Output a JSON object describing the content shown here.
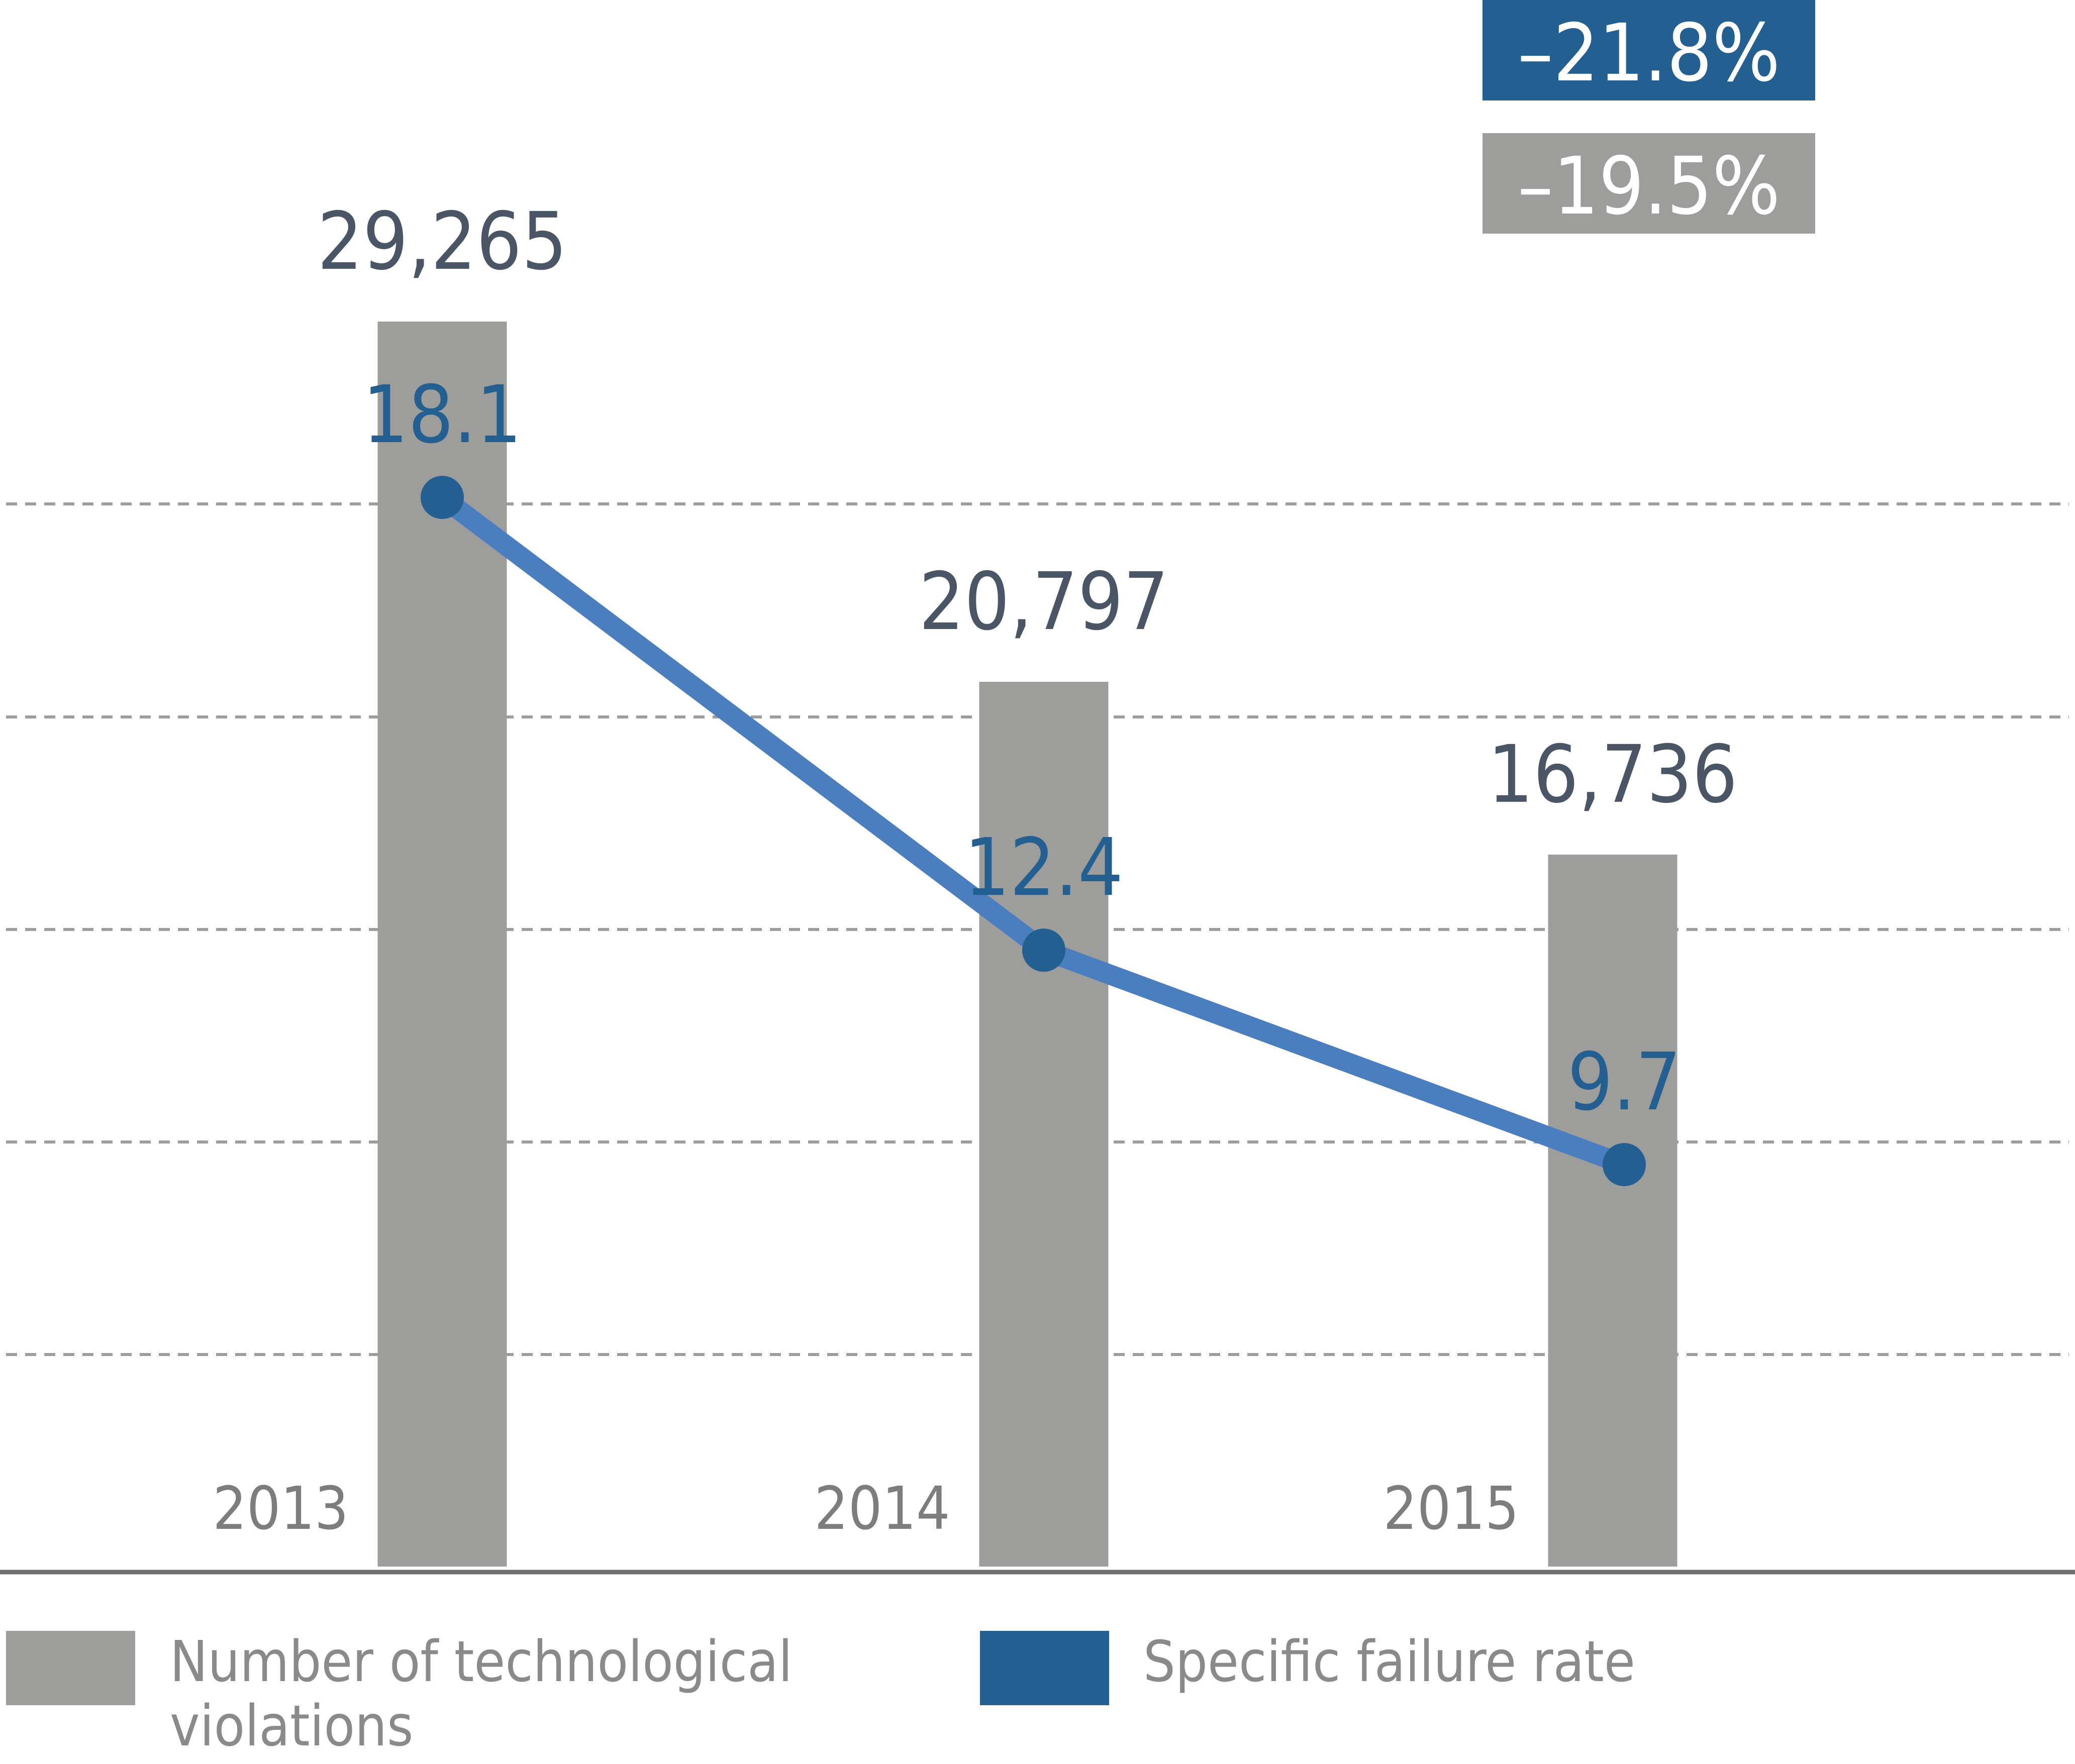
{
  "chart_data": {
    "type": "bar+line",
    "categories": [
      "2013",
      "2014",
      "2015"
    ],
    "series": [
      {
        "name": "Number of technological violations",
        "type": "bar",
        "values": [
          29265,
          20797,
          16736
        ],
        "labels": [
          "29,265",
          "20,797",
          "16,736"
        ],
        "color": "#9d9d9c"
      },
      {
        "name": "Specific failure rate",
        "type": "line",
        "values": [
          18.1,
          12.4,
          9.7
        ],
        "labels": [
          "18.1",
          "12.4",
          "9.7"
        ],
        "color": "#245f92",
        "line_color": "#4a7ebf"
      }
    ],
    "change_badges": [
      {
        "label": "–21.8%",
        "color": "#245f92"
      },
      {
        "label": "–19.5%",
        "color": "#9d9d9c"
      }
    ],
    "grid": true,
    "legend": "bottom",
    "colors": {
      "bar_value_label": "#4a5565",
      "line_value_label": "#245f92",
      "category_label": "#7d7d7d",
      "grid": "#9d9d9c",
      "axis": "#6f6f6f",
      "legend_text": "#8a8a8a"
    }
  }
}
